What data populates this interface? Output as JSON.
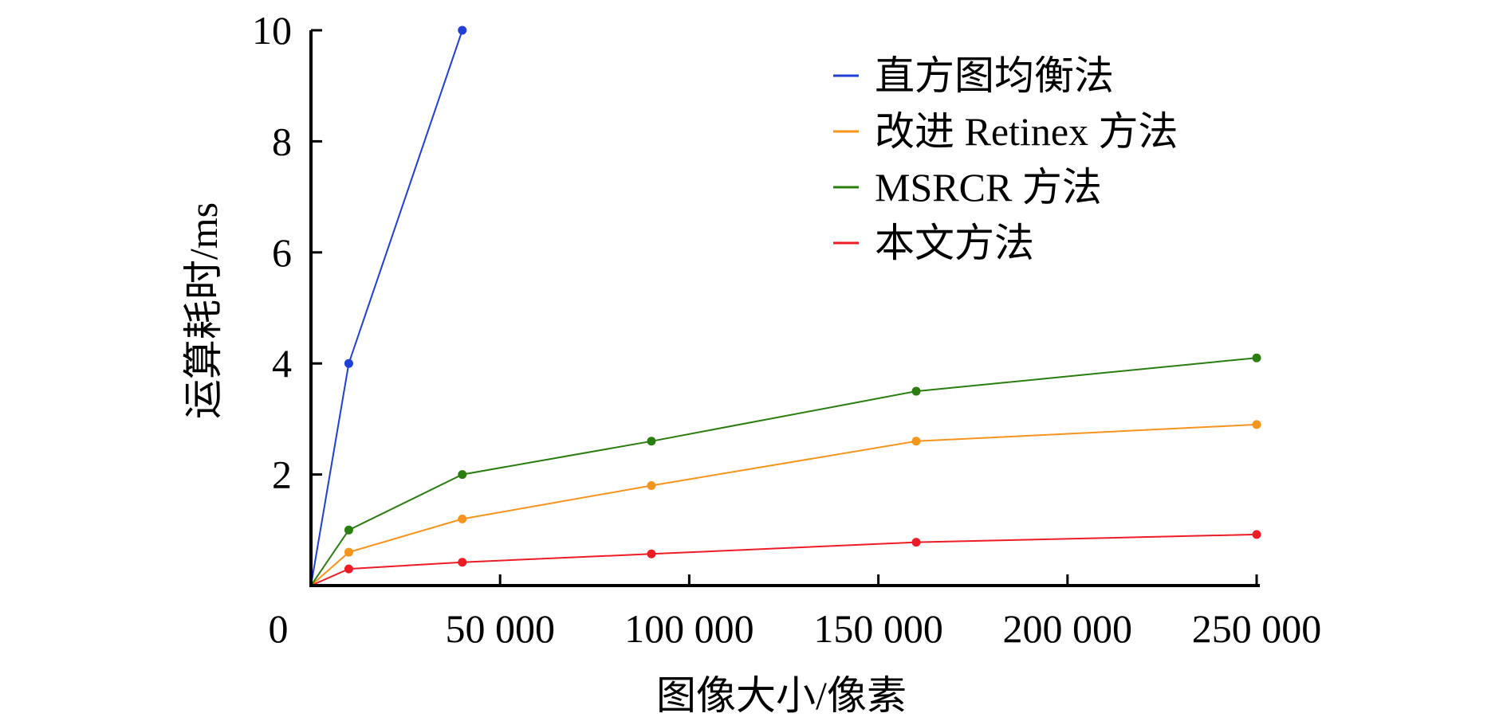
{
  "chart_data": {
    "type": "line",
    "xlabel": "图像大小/像素",
    "ylabel": "运算耗时/ms",
    "x_ticks": [
      50000,
      100000,
      150000,
      200000,
      250000
    ],
    "x_tick_labels": [
      "50 000",
      "100 000",
      "150 000",
      "200 000",
      "250 000"
    ],
    "origin_label": "0",
    "y_ticks": [
      2,
      4,
      6,
      8,
      10
    ],
    "y_tick_labels": [
      "2",
      "4",
      "6",
      "8",
      "10"
    ],
    "xlim": [
      0,
      250000
    ],
    "ylim": [
      0,
      10
    ],
    "grid": false,
    "legend_position": "top-right",
    "series": [
      {
        "name": "直方图均衡法",
        "color": "#1f3fd6",
        "x": [
          0,
          10000,
          40000
        ],
        "values": [
          0,
          4.0,
          10.0
        ]
      },
      {
        "name": "改进 Retinex 方法",
        "color": "#f7941d",
        "x": [
          0,
          10000,
          40000,
          90000,
          160000,
          250000
        ],
        "values": [
          0,
          0.6,
          1.2,
          1.8,
          2.6,
          2.9
        ]
      },
      {
        "name": "MSRCR 方法",
        "color": "#2a7d0f",
        "x": [
          0,
          10000,
          40000,
          90000,
          160000,
          250000
        ],
        "values": [
          0,
          1.0,
          2.0,
          2.6,
          3.5,
          4.1
        ]
      },
      {
        "name": "本文方法",
        "color": "#ee1c25",
        "x": [
          0,
          10000,
          40000,
          90000,
          160000,
          250000
        ],
        "values": [
          0,
          0.3,
          0.42,
          0.57,
          0.78,
          0.92
        ]
      }
    ]
  }
}
